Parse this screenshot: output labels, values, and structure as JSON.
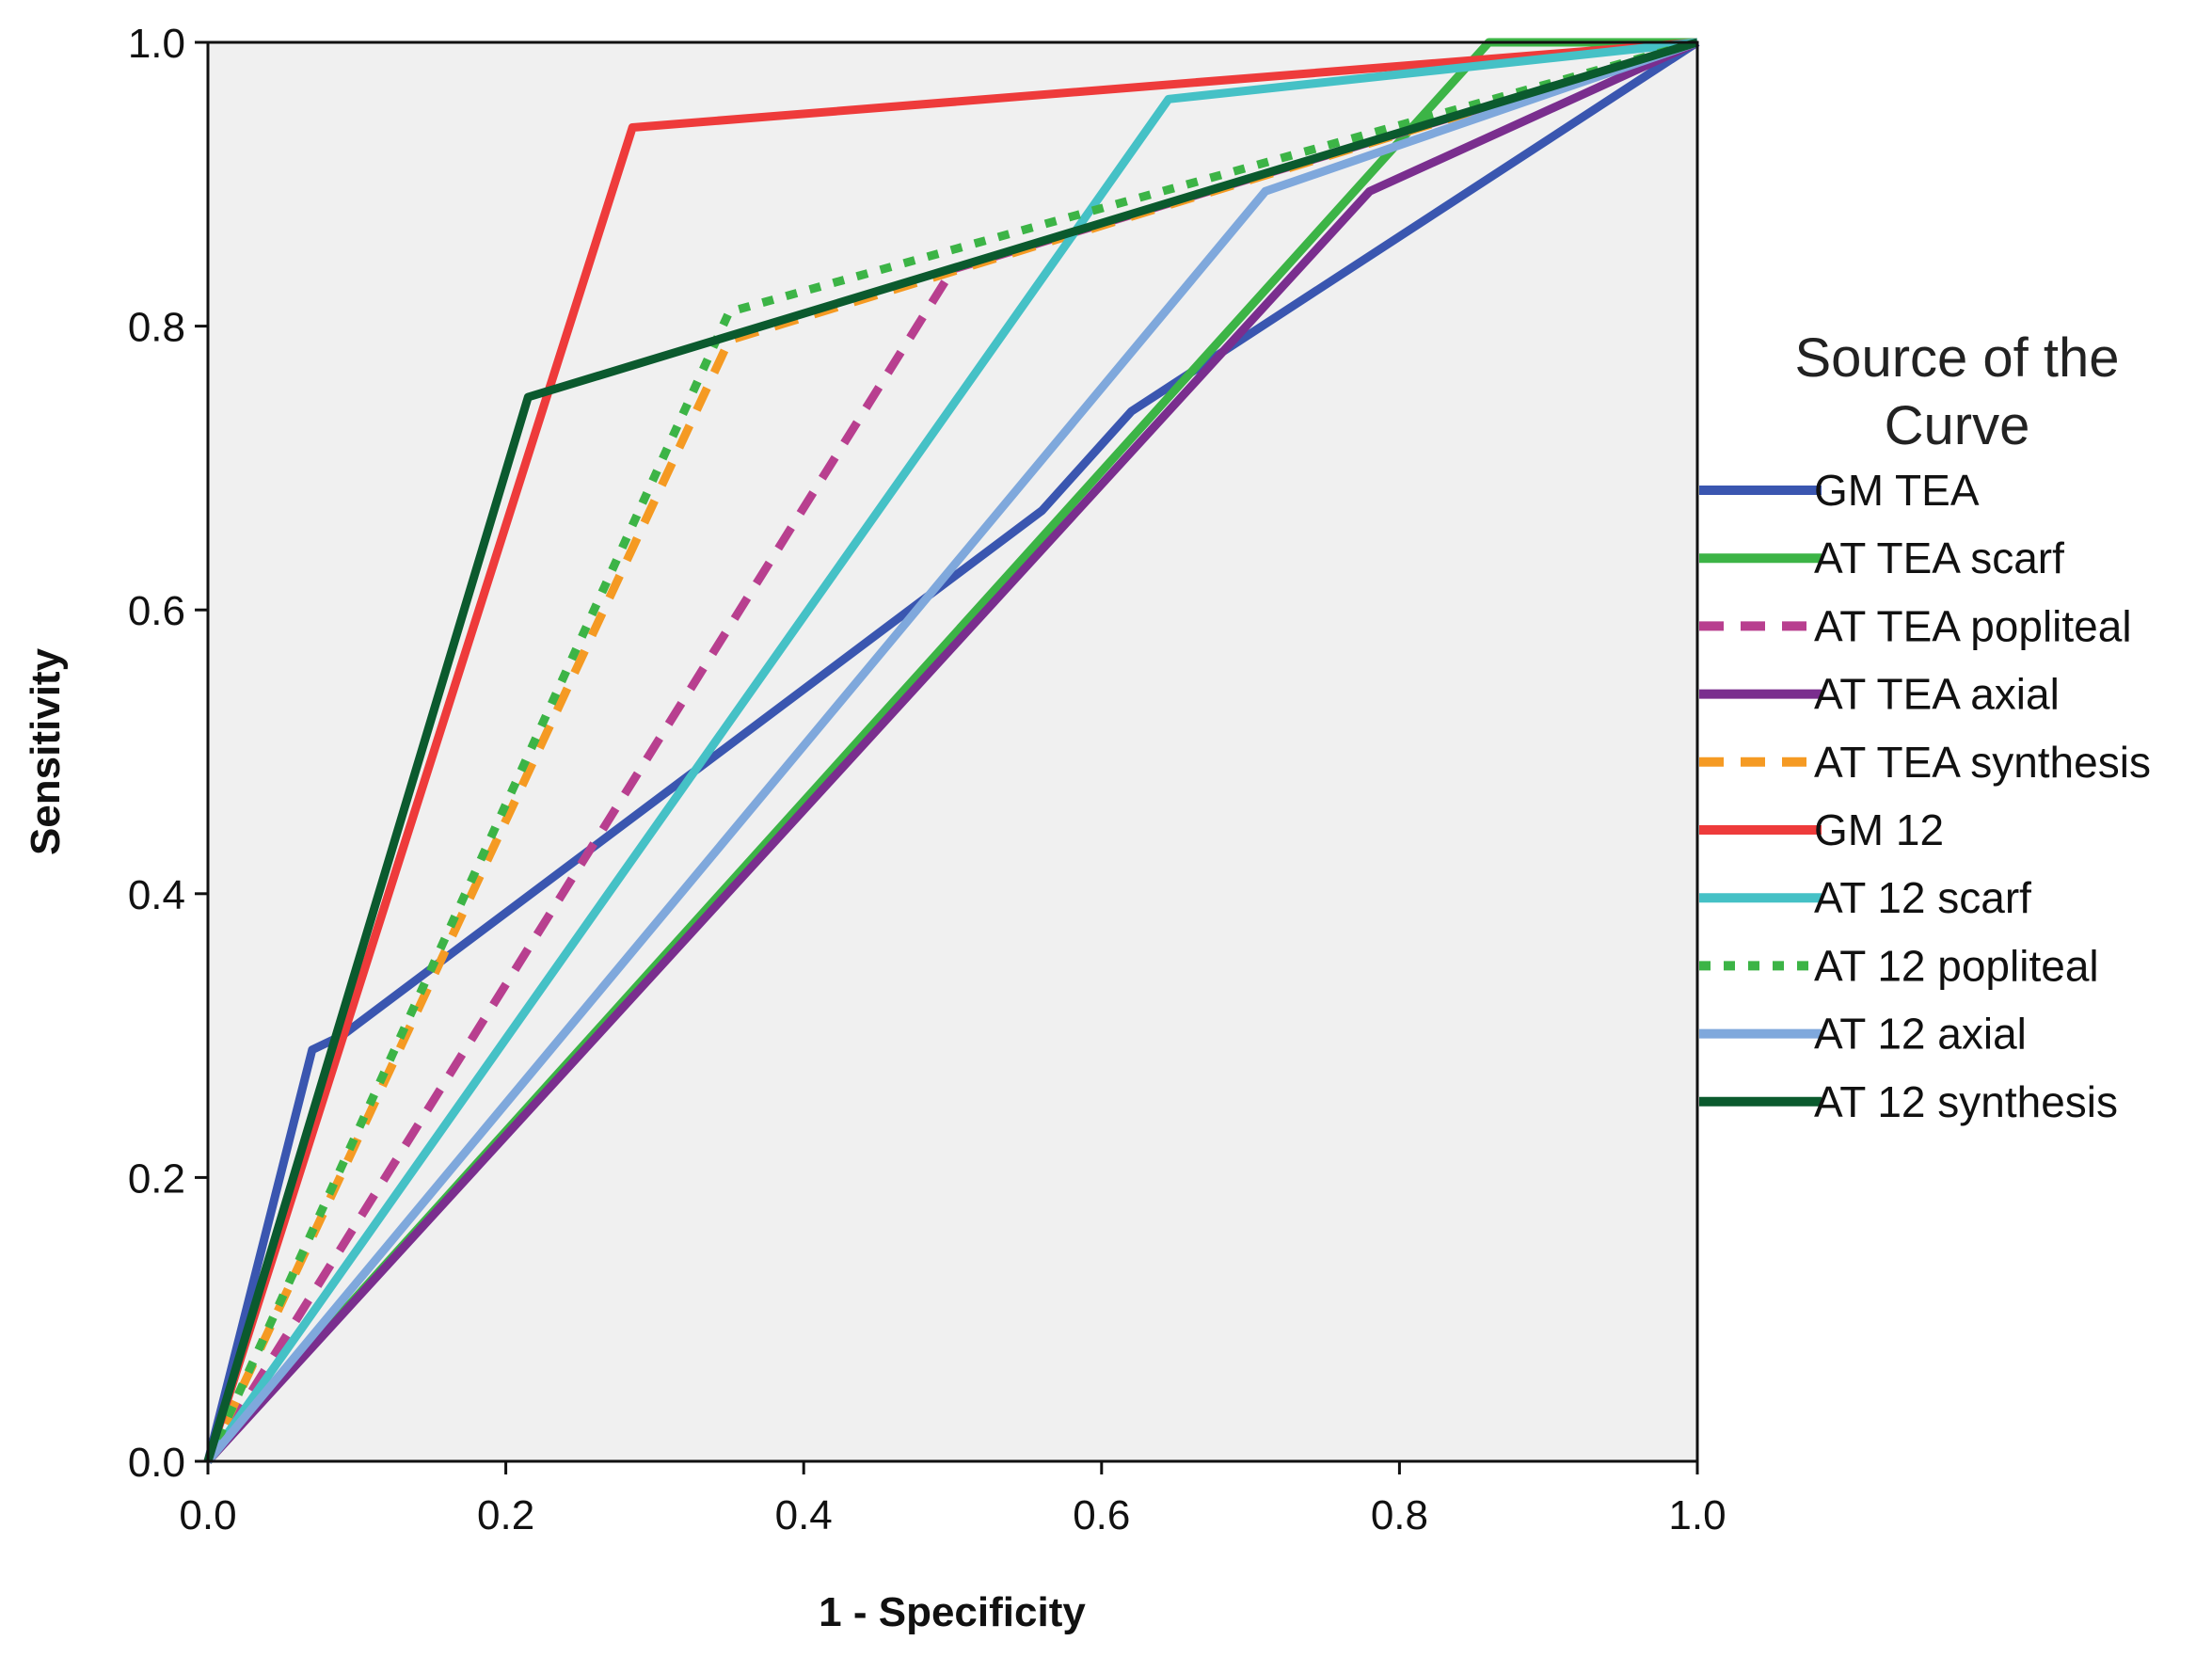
{
  "chart_data": {
    "type": "line",
    "title": "",
    "xlabel": "1 - Specificity",
    "ylabel": "Sensitivity",
    "xlim": [
      0,
      1
    ],
    "ylim": [
      0,
      1
    ],
    "x_ticks": [
      "0.0",
      "0.2",
      "0.4",
      "0.6",
      "0.8",
      "1.0"
    ],
    "y_ticks": [
      "0.0",
      "0.2",
      "0.4",
      "0.6",
      "0.8",
      "1.0"
    ],
    "grid": false,
    "plot_background": "#f0f0f0",
    "legend_title": "Source of the Curve",
    "legend_position": "right",
    "series": [
      {
        "name": "GM TEA",
        "color": "#3a56b0",
        "dash": "solid",
        "points": [
          [
            0,
            0
          ],
          [
            0.07,
            0.29
          ],
          [
            0.09,
            0.3
          ],
          [
            0.56,
            0.67
          ],
          [
            0.62,
            0.74
          ],
          [
            1,
            1
          ]
        ]
      },
      {
        "name": "AT TEA scarf",
        "color": "#3cb446",
        "dash": "solid",
        "points": [
          [
            0,
            0
          ],
          [
            0.86,
            1.0
          ],
          [
            1,
            1
          ]
        ]
      },
      {
        "name": "AT TEA popliteal",
        "color": "#b83f8f",
        "dash": "dashed",
        "points": [
          [
            0,
            0
          ],
          [
            0.5,
            0.84
          ],
          [
            1,
            1
          ]
        ]
      },
      {
        "name": "AT TEA axial",
        "color": "#7a2e8e",
        "dash": "solid",
        "points": [
          [
            0,
            0
          ],
          [
            0.78,
            0.895
          ],
          [
            1,
            1
          ]
        ]
      },
      {
        "name": "AT TEA synthesis",
        "color": "#f59a23",
        "dash": "dashed",
        "points": [
          [
            0,
            0
          ],
          [
            0.35,
            0.79
          ],
          [
            1,
            1
          ]
        ]
      },
      {
        "name": "GM 12",
        "color": "#ee3b3b",
        "dash": "solid",
        "points": [
          [
            0,
            0
          ],
          [
            0.285,
            0.94
          ],
          [
            1,
            1
          ]
        ]
      },
      {
        "name": "AT 12 scarf",
        "color": "#45c1c6",
        "dash": "solid",
        "points": [
          [
            0,
            0
          ],
          [
            0.645,
            0.96
          ],
          [
            1,
            1
          ]
        ]
      },
      {
        "name": "AT 12 popliteal",
        "color": "#3cb446",
        "dash": "dotted",
        "points": [
          [
            0,
            0
          ],
          [
            0.35,
            0.81
          ],
          [
            1,
            1
          ]
        ]
      },
      {
        "name": "AT 12 axial",
        "color": "#7fa8dc",
        "dash": "solid",
        "points": [
          [
            0,
            0
          ],
          [
            0.71,
            0.895
          ],
          [
            1,
            1
          ]
        ]
      },
      {
        "name": "AT 12 synthesis",
        "color": "#0b5a2e",
        "dash": "solid",
        "points": [
          [
            0,
            0
          ],
          [
            0.215,
            0.75
          ],
          [
            1,
            1
          ]
        ]
      }
    ]
  }
}
